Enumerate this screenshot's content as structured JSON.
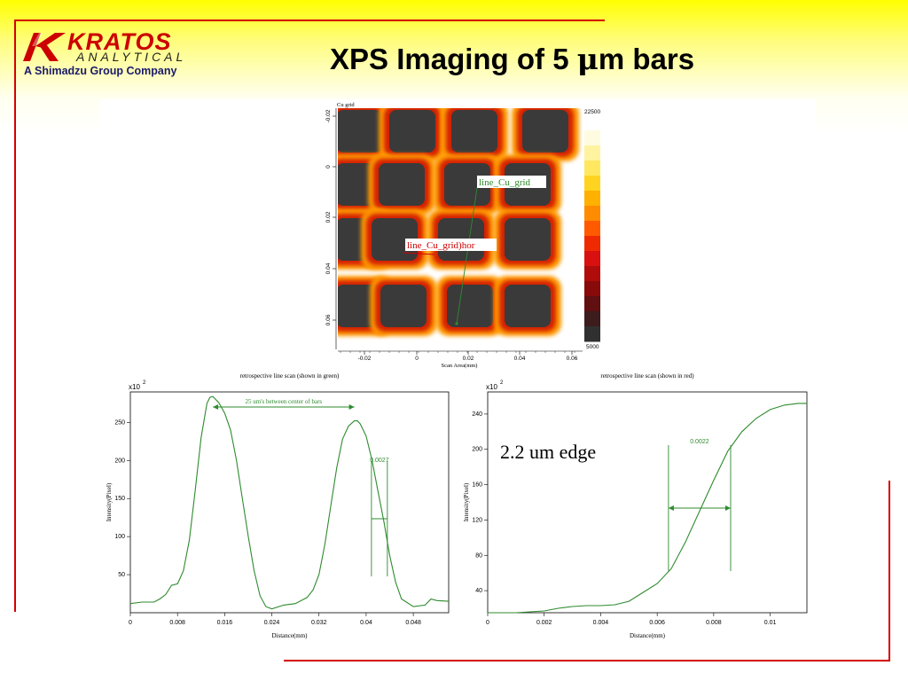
{
  "slide": {
    "title_prefix": "XPS Imaging of 5 ",
    "title_mu": "μ",
    "title_suffix": "m bars",
    "edge_note": "2.2 um edge"
  },
  "logo": {
    "word": "KRATOS",
    "sub": "ANALYTICAL",
    "tagline": "A Shimadzu Group Company"
  },
  "colors": {
    "rule": "#d40000",
    "trace": "#2e8b2e",
    "logo_red": "#cc0000"
  },
  "image_map": {
    "title": "Cu grid",
    "xlabel": "Scan Area(mm)",
    "x_ticks": [
      "-0.02",
      "0",
      "0.02",
      "0.04",
      "0.06"
    ],
    "y_ticks": [
      "-0.02",
      "0",
      "0.02",
      "0.04",
      "0.06"
    ],
    "colorbar": {
      "max": "22500",
      "min": "5000",
      "colors": [
        "#ffffff",
        "#fffbe0",
        "#fff3a0",
        "#ffe860",
        "#ffd420",
        "#ffb000",
        "#ff8c00",
        "#ff5a00",
        "#f02a00",
        "#d81010",
        "#b00c0c",
        "#880a0a",
        "#601010",
        "#3c1c1c",
        "#303030"
      ]
    },
    "annotations": {
      "vertical_line": "line_Cu_grid",
      "horizontal_line": "line_Cu_grid)hor"
    }
  },
  "chart_data": [
    {
      "type": "line",
      "title": "retrospective line scan (shown in green)",
      "xlabel": "Distance(mm)",
      "ylabel": "Intensity(Pixel)",
      "y_multiplier": "x10",
      "y_exponent": "2",
      "xlim": [
        0,
        0.054
      ],
      "ylim": [
        0,
        290
      ],
      "x_ticks": [
        0,
        0.008,
        0.016,
        0.024,
        0.032,
        0.04,
        0.048
      ],
      "x_tick_labels": [
        "0",
        "0.008",
        "0.016",
        "0.024",
        "0.032",
        "0.04",
        "0.048"
      ],
      "y_ticks": [
        50,
        100,
        150,
        200,
        250
      ],
      "y_tick_labels": [
        "50",
        "100",
        "150",
        "200",
        "250"
      ],
      "series": [
        {
          "x": [
            0,
            0.002,
            0.004,
            0.005,
            0.006,
            0.007,
            0.008,
            0.009,
            0.01,
            0.011,
            0.012,
            0.013,
            0.0135,
            0.014,
            0.0145,
            0.015,
            0.016,
            0.017,
            0.018,
            0.019,
            0.02,
            0.021,
            0.022,
            0.023,
            0.024,
            0.026,
            0.028,
            0.03,
            0.031,
            0.032,
            0.033,
            0.034,
            0.035,
            0.036,
            0.037,
            0.038,
            0.0385,
            0.039,
            0.04,
            0.041,
            0.042,
            0.043,
            0.044,
            0.045,
            0.046,
            0.048,
            0.05,
            0.051,
            0.052,
            0.054
          ],
          "y": [
            12,
            14,
            14,
            18,
            24,
            36,
            38,
            55,
            95,
            160,
            230,
            275,
            283,
            284,
            280,
            276,
            262,
            240,
            200,
            150,
            100,
            55,
            22,
            8,
            5,
            10,
            12,
            20,
            30,
            50,
            90,
            140,
            190,
            228,
            245,
            252,
            252,
            248,
            232,
            200,
            160,
            120,
            75,
            40,
            18,
            8,
            10,
            18,
            16,
            15
          ]
        }
      ],
      "annotations": {
        "peak_spacing": "25 um's between center of bars",
        "peak_spacing_range": [
          0.014,
          0.038
        ],
        "width_label": "0.0027",
        "width_range": [
          0.0409,
          0.0436
        ]
      }
    },
    {
      "type": "line",
      "title": "retrospective line scan (shown in red)",
      "xlabel": "Distance(mm)",
      "ylabel": "Intensity(Pixel)",
      "y_multiplier": "x10",
      "y_exponent": "2",
      "xlim": [
        0,
        0.0113
      ],
      "ylim": [
        15,
        265
      ],
      "x_ticks": [
        0,
        0.002,
        0.004,
        0.006,
        0.008,
        0.01
      ],
      "x_tick_labels": [
        "0",
        "0.002",
        "0.004",
        "0.006",
        "0.008",
        "0.01"
      ],
      "y_ticks": [
        40,
        80,
        120,
        160,
        200,
        240
      ],
      "y_tick_labels": [
        "40",
        "80",
        "120",
        "160",
        "200",
        "240"
      ],
      "series": [
        {
          "x": [
            0,
            0.001,
            0.002,
            0.0025,
            0.003,
            0.0035,
            0.004,
            0.0045,
            0.005,
            0.0055,
            0.006,
            0.0065,
            0.007,
            0.0075,
            0.008,
            0.0085,
            0.009,
            0.0095,
            0.01,
            0.0105,
            0.011,
            0.0113
          ],
          "y": [
            15,
            15,
            17,
            20,
            22,
            23,
            23,
            24,
            28,
            38,
            48,
            65,
            95,
            130,
            165,
            198,
            220,
            235,
            245,
            250,
            252,
            252
          ]
        }
      ],
      "annotations": {
        "width_label": "0.0022",
        "width_range": [
          0.0064,
          0.0086
        ]
      }
    }
  ]
}
